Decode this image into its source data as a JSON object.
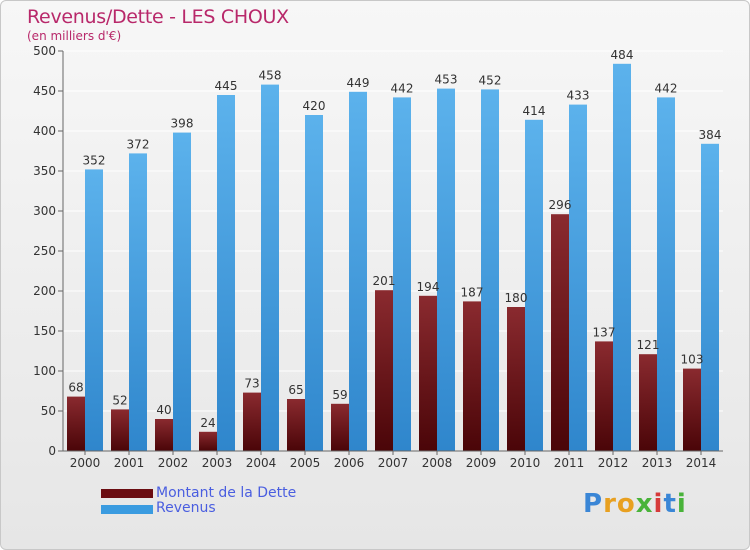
{
  "header": {
    "title": "Revenus/Dette - LES CHOUX",
    "subtitle": "(en milliers d'€)"
  },
  "legend": {
    "items": [
      {
        "label": "Montant de la Dette",
        "color": "#6b0d12"
      },
      {
        "label": "Revenus",
        "color": "#3a9be0"
      }
    ]
  },
  "logo": {
    "letters": [
      "P",
      "r",
      "o",
      "x",
      "i",
      "t",
      "i"
    ],
    "colors": [
      "#3a86d6",
      "#e8a020",
      "#e8a020",
      "#49b33a",
      "#d63a3a",
      "#3a86d6",
      "#49b33a"
    ]
  },
  "chart_data": {
    "type": "bar",
    "title": "Revenus/Dette - LES CHOUX",
    "subtitle": "(en milliers d'€)",
    "categories": [
      "2000",
      "2001",
      "2002",
      "2003",
      "2004",
      "2005",
      "2006",
      "2007",
      "2008",
      "2009",
      "2010",
      "2011",
      "2012",
      "2013",
      "2014"
    ],
    "series": [
      {
        "name": "Montant de la Dette",
        "color": "#6b0d12",
        "values": [
          68,
          52,
          40,
          24,
          73,
          65,
          59,
          201,
          194,
          187,
          180,
          296,
          137,
          121,
          103
        ]
      },
      {
        "name": "Revenus",
        "color": "#3a9be0",
        "values": [
          352,
          372,
          398,
          445,
          458,
          420,
          449,
          442,
          453,
          452,
          414,
          433,
          484,
          442,
          384
        ]
      }
    ],
    "ylim": [
      0,
      500
    ],
    "yticks": [
      0,
      50,
      100,
      150,
      200,
      250,
      300,
      350,
      400,
      450,
      500
    ],
    "grid": true,
    "legend_position": "bottom-left"
  }
}
